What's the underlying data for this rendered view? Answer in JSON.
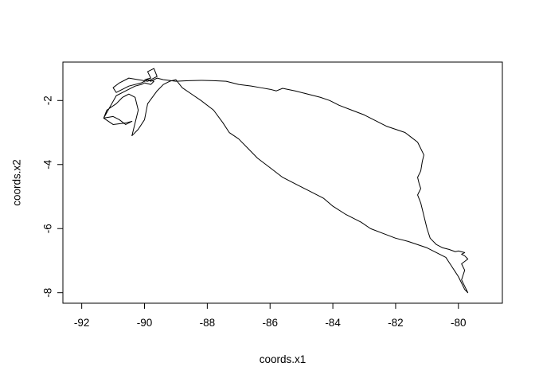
{
  "chart_data": {
    "type": "line",
    "title": "",
    "xlabel": "coords.x1",
    "ylabel": "coords.x2",
    "xlim": [
      -92.6,
      -78.6
    ],
    "ylim": [
      -8.33,
      -0.8
    ],
    "x_ticks": [
      -92,
      -90,
      -88,
      -86,
      -84,
      -82,
      -80
    ],
    "x_tick_labels": [
      "-92",
      "-90",
      "-88",
      "-86",
      "-84",
      "-82",
      "-80"
    ],
    "y_ticks": [
      -8,
      -6,
      -4,
      -2
    ],
    "y_tick_labels": [
      "-8",
      "-6",
      "-4",
      "-2"
    ],
    "grid": false,
    "series": [
      {
        "x": [
          -90.0,
          -89.8,
          -89.9,
          -89.7,
          -89.6,
          -89.9,
          -90.2,
          -90.5,
          -90.8,
          -91.0,
          -90.9,
          -90.5,
          -90.1,
          -89.9,
          -89.7,
          -89.8,
          -90.0,
          -90.1,
          -90.3,
          -90.6,
          -90.9,
          -91.3,
          -91.0,
          -90.8,
          -90.6,
          -90.5,
          -90.4,
          -90.6,
          -91.0,
          -91.3,
          -91.2,
          -90.9,
          -90.7,
          -90.6,
          -90.5,
          -90.3,
          -90.2,
          -90.3,
          -90.4,
          -90.2,
          -90.0,
          -89.9,
          -89.6,
          -89.4,
          -89.2,
          -89.0,
          -88.8,
          -88.5,
          -88.2,
          -87.8,
          -87.5,
          -87.3,
          -87.0,
          -86.7,
          -86.4,
          -86.0,
          -85.6,
          -85.2,
          -84.8,
          -84.3,
          -84.0,
          -83.6,
          -83.1,
          -82.8,
          -82.4,
          -82.0,
          -81.6,
          -81.3,
          -81.0,
          -80.8,
          -80.6,
          -80.4,
          -80.3,
          -80.2,
          -80.1,
          -80.0,
          -79.9,
          -79.8,
          -79.7,
          -79.8,
          -79.9,
          -79.8,
          -79.9,
          -79.7,
          -79.8,
          -79.9,
          -79.8,
          -80.0,
          -80.1,
          -80.3,
          -80.5,
          -80.7,
          -80.9,
          -81.0,
          -81.1,
          -81.2,
          -81.3,
          -81.2,
          -81.25,
          -81.3,
          -81.2,
          -81.15,
          -81.1,
          -81.2,
          -81.3,
          -81.5,
          -81.7,
          -82.0,
          -82.3,
          -82.6,
          -82.9,
          -83.0,
          -83.4,
          -83.8,
          -84.1,
          -84.4,
          -84.8,
          -85.2,
          -85.6,
          -85.8,
          -86.0,
          -86.3,
          -86.6,
          -87.0,
          -87.4,
          -87.8,
          -88.2,
          -88.6,
          -89.0,
          -89.4,
          -89.6,
          -89.8,
          -89.9
        ],
        "y": [
          -1.35,
          -1.3,
          -1.1,
          -1.0,
          -1.25,
          -1.4,
          -1.35,
          -1.3,
          -1.45,
          -1.6,
          -1.75,
          -1.55,
          -1.45,
          -1.35,
          -1.4,
          -1.5,
          -1.45,
          -1.5,
          -1.55,
          -1.7,
          -1.85,
          -2.55,
          -2.5,
          -2.6,
          -2.75,
          -2.7,
          -2.65,
          -2.7,
          -2.75,
          -2.55,
          -2.3,
          -2.1,
          -1.9,
          -1.85,
          -1.8,
          -1.9,
          -2.3,
          -2.7,
          -3.1,
          -2.9,
          -2.6,
          -2.1,
          -1.7,
          -1.5,
          -1.4,
          -1.35,
          -1.6,
          -1.8,
          -2.0,
          -2.3,
          -2.7,
          -3.0,
          -3.2,
          -3.5,
          -3.8,
          -4.1,
          -4.4,
          -4.6,
          -4.8,
          -5.05,
          -5.3,
          -5.55,
          -5.8,
          -6.0,
          -6.15,
          -6.3,
          -6.4,
          -6.5,
          -6.6,
          -6.7,
          -6.8,
          -6.9,
          -7.05,
          -7.2,
          -7.35,
          -7.5,
          -7.7,
          -7.9,
          -8.0,
          -7.8,
          -7.6,
          -7.3,
          -7.1,
          -6.95,
          -6.85,
          -6.8,
          -6.75,
          -6.7,
          -6.72,
          -6.65,
          -6.6,
          -6.5,
          -6.3,
          -6.0,
          -5.6,
          -5.2,
          -4.95,
          -4.75,
          -4.6,
          -4.4,
          -4.2,
          -3.9,
          -3.7,
          -3.5,
          -3.3,
          -3.15,
          -3.0,
          -2.9,
          -2.8,
          -2.65,
          -2.5,
          -2.45,
          -2.3,
          -2.15,
          -2.0,
          -1.9,
          -1.8,
          -1.7,
          -1.62,
          -1.7,
          -1.65,
          -1.6,
          -1.55,
          -1.5,
          -1.4,
          -1.38,
          -1.37,
          -1.38,
          -1.4,
          -1.35,
          -1.3,
          -1.4,
          -1.35
        ]
      }
    ]
  }
}
